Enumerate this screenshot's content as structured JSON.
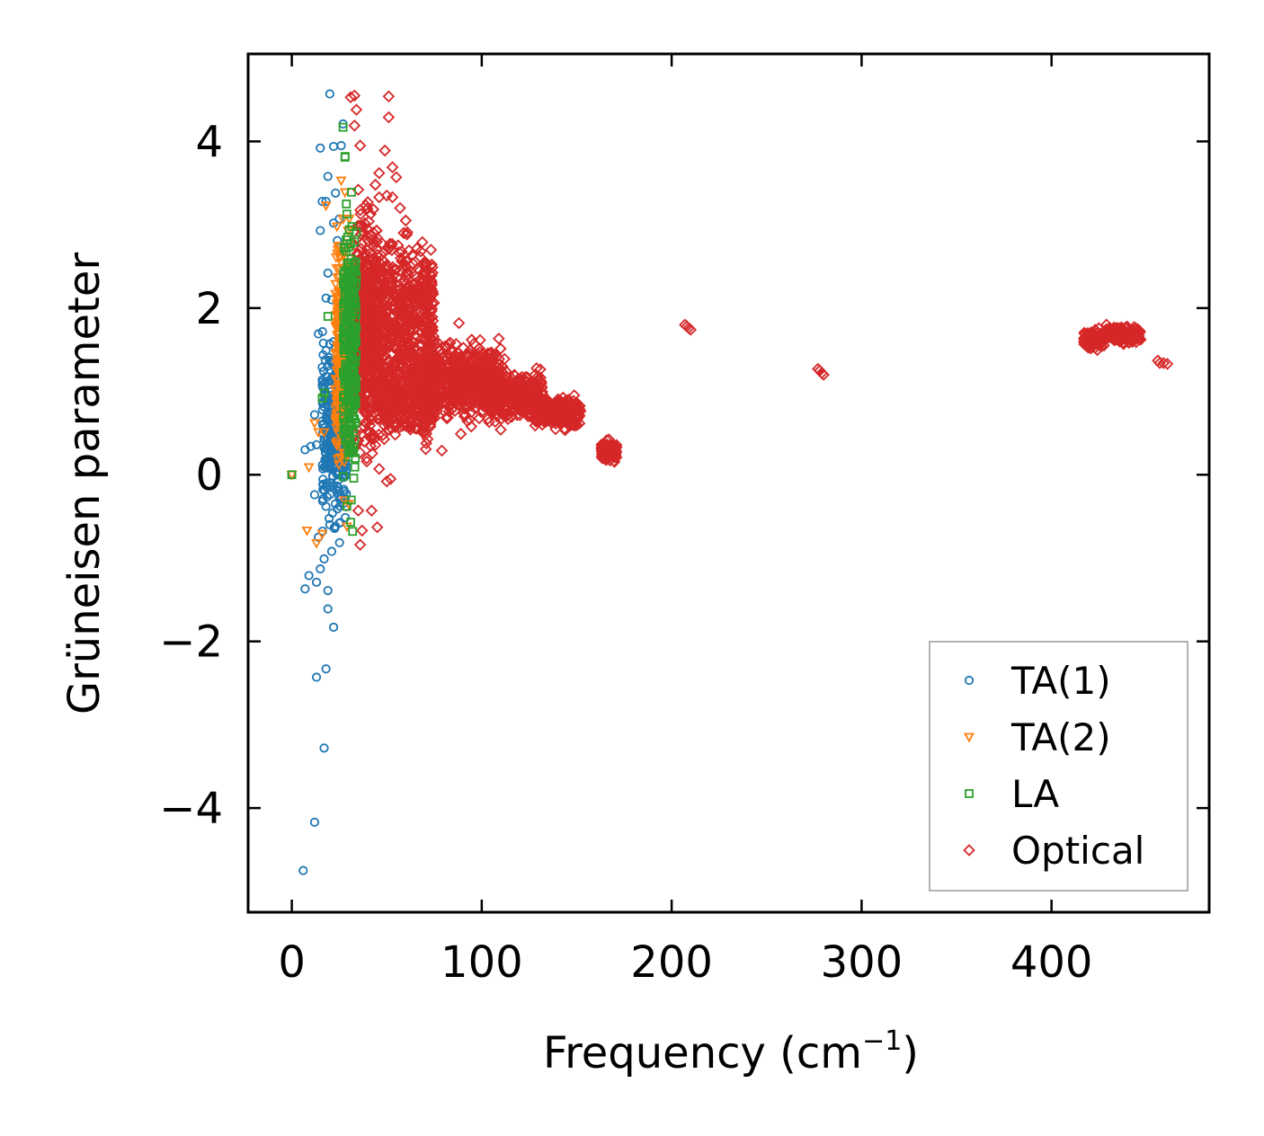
{
  "chart_data": {
    "type": "scatter",
    "title": "",
    "xlabel": "Frequency (cm",
    "xlabel_sup": "−1",
    "xlabel_close": ")",
    "ylabel": "Grüneisen parameter",
    "xlim": [
      -23,
      483
    ],
    "ylim": [
      -5.25,
      5.05
    ],
    "xticks": [
      0,
      100,
      200,
      300,
      400
    ],
    "xtick_labels": [
      "0",
      "100",
      "200",
      "300",
      "400"
    ],
    "yticks": [
      -4,
      -2,
      0,
      2,
      4
    ],
    "ytick_labels": [
      "−4",
      "−2",
      "0",
      "2",
      "4"
    ],
    "grid": false,
    "legend_position": "bottom-right",
    "series": [
      {
        "name": "TA(1)",
        "marker": "circle",
        "color": "#1f77b4",
        "points": [
          [
            0,
            0
          ],
          [
            6,
            -4.75
          ],
          [
            12,
            -4.17
          ],
          [
            17,
            -3.28
          ],
          [
            13,
            -2.43
          ],
          [
            18,
            -2.33
          ],
          [
            22,
            -1.83
          ],
          [
            19,
            -1.61
          ],
          [
            7,
            -1.37
          ],
          [
            13,
            -1.29
          ],
          [
            19,
            -1.39
          ],
          [
            9,
            -1.21
          ],
          [
            15,
            -1.13
          ],
          [
            17,
            -1.01
          ],
          [
            21,
            -0.92
          ],
          [
            14,
            -0.75
          ],
          [
            12,
            -0.24
          ],
          [
            10,
            0.34
          ],
          [
            13,
            0.36
          ],
          [
            7,
            0.3
          ],
          [
            12,
            0.72
          ],
          [
            14,
            1.69
          ],
          [
            18,
            1.49
          ],
          [
            15,
            2.93
          ],
          [
            20,
            4.57
          ],
          [
            27,
            4.21
          ],
          [
            15,
            3.92
          ],
          [
            19,
            3.58
          ],
          [
            16,
            3.28
          ],
          [
            18,
            3.28
          ],
          [
            23,
            3.38
          ],
          [
            25,
            3.07
          ],
          [
            22,
            3.94
          ],
          [
            26,
            3.95
          ],
          [
            24,
            2.81
          ],
          [
            22,
            3.02
          ],
          [
            19,
            2.42
          ],
          [
            21,
            2.1
          ],
          [
            18,
            2.12
          ],
          [
            17,
            1.03
          ],
          [
            16,
            1.29
          ],
          [
            20,
            1.57
          ],
          [
            22,
            1.36
          ],
          [
            24,
            1.21
          ],
          [
            26,
            1.65
          ],
          [
            21,
            0.44
          ],
          [
            19,
            0.17
          ],
          [
            18,
            -0.38
          ],
          [
            23,
            -0.62
          ],
          [
            25,
            -0.58
          ],
          [
            20,
            -0.6
          ],
          [
            24,
            -0.41
          ]
        ],
        "dense_band": {
          "x_range": [
            16,
            29
          ],
          "y_range": [
            -0.9,
            1.9
          ],
          "count": 320
        }
      },
      {
        "name": "TA(2)",
        "marker": "triangle-down",
        "color": "#ff7f0e",
        "points": [
          [
            0,
            0
          ],
          [
            8,
            -0.67
          ],
          [
            13,
            -0.82
          ],
          [
            16,
            -0.71
          ],
          [
            9,
            0.09
          ],
          [
            12,
            0.62
          ],
          [
            14,
            0.51
          ],
          [
            17,
            0.51
          ],
          [
            18,
            3.23
          ],
          [
            26,
            3.53
          ],
          [
            28,
            3.39
          ],
          [
            27,
            3.07
          ],
          [
            27,
            2.64
          ],
          [
            25,
            2.47
          ],
          [
            26,
            2.16
          ],
          [
            24,
            1.96
          ],
          [
            26,
            1.74
          ],
          [
            29,
            -0.62
          ],
          [
            30,
            -0.35
          ]
        ],
        "dense_band": {
          "x_range": [
            23,
            31
          ],
          "y_range": [
            -0.45,
            3.3
          ],
          "count": 280
        }
      },
      {
        "name": "LA",
        "marker": "square",
        "color": "#2ca02c",
        "points": [
          [
            0,
            0
          ],
          [
            27,
            4.17
          ],
          [
            28,
            3.81
          ],
          [
            19,
            1.9
          ],
          [
            17,
            0.98
          ],
          [
            16,
            0.92
          ],
          [
            31,
            -0.57
          ],
          [
            29,
            -0.38
          ],
          [
            30,
            2.49
          ],
          [
            32,
            -0.68
          ]
        ],
        "dense_band": {
          "x_range": [
            27,
            34
          ],
          "y_range": [
            -0.7,
            3.9
          ],
          "count": 300
        }
      },
      {
        "name": "Optical",
        "marker": "diamond",
        "color": "#d62728",
        "points": [
          [
            31,
            4.53
          ],
          [
            33,
            4.55
          ],
          [
            51,
            4.54
          ],
          [
            51,
            4.29
          ],
          [
            33,
            4.19
          ],
          [
            34,
            4.38
          ],
          [
            36,
            3.95
          ],
          [
            49,
            3.89
          ],
          [
            55,
            3.57
          ],
          [
            53,
            3.69
          ],
          [
            46,
            3.62
          ],
          [
            44,
            3.48
          ],
          [
            35,
            3.42
          ],
          [
            40,
            3.27
          ],
          [
            46,
            3.33
          ],
          [
            50,
            3.35
          ],
          [
            53,
            3.33
          ],
          [
            57,
            3.2
          ],
          [
            60,
            3.05
          ],
          [
            45,
            2.84
          ],
          [
            51,
            2.71
          ],
          [
            43,
            2.46
          ],
          [
            36,
            2.33
          ],
          [
            37,
            1.86
          ],
          [
            88,
            1.82
          ],
          [
            112,
            1.39
          ],
          [
            35,
            -0.43
          ],
          [
            42,
            -0.43
          ],
          [
            45,
            -0.63
          ],
          [
            37,
            -0.67
          ],
          [
            36,
            -0.84
          ],
          [
            50,
            -0.08
          ],
          [
            52,
            -0.05
          ],
          [
            46,
            0.07
          ],
          [
            79,
            0.29
          ],
          [
            89,
            0.49
          ],
          [
            110,
            0.54
          ],
          [
            208,
            1.78
          ],
          [
            209,
            1.76
          ],
          [
            207,
            1.8
          ],
          [
            210,
            1.74
          ],
          [
            278,
            1.25
          ],
          [
            279,
            1.22
          ],
          [
            280,
            1.2
          ],
          [
            277,
            1.27
          ],
          [
            457,
            1.34
          ],
          [
            459,
            1.34
          ],
          [
            461,
            1.33
          ],
          [
            456,
            1.37
          ]
        ],
        "dense_regions": [
          {
            "x_range": [
              33,
              45
            ],
            "y_range": [
              -0.1,
              3.6
            ],
            "count": 500
          },
          {
            "x_range": [
              45,
              75
            ],
            "y_range": [
              0.9,
              3.05
            ],
            "count": 420
          },
          {
            "x_range": [
              45,
              75
            ],
            "y_range": [
              0.2,
              1.8
            ],
            "count": 420
          },
          {
            "x_range": [
              70,
              110
            ],
            "y_range": [
              0.5,
              1.75
            ],
            "count": 560
          },
          {
            "x_range": [
              100,
              132
            ],
            "y_range": [
              0.55,
              1.35
            ],
            "count": 380
          },
          {
            "x_range": [
              128,
              152
            ],
            "y_range": [
              0.5,
              1.0
            ],
            "count": 260
          },
          {
            "x_range": [
              163,
              171
            ],
            "y_range": [
              0.1,
              0.45
            ],
            "count": 90
          },
          {
            "x_range": [
              417,
              428
            ],
            "y_range": [
              1.45,
              1.78
            ],
            "count": 120
          },
          {
            "x_range": [
              428,
              447
            ],
            "y_range": [
              1.55,
              1.82
            ],
            "count": 180
          }
        ]
      }
    ]
  }
}
